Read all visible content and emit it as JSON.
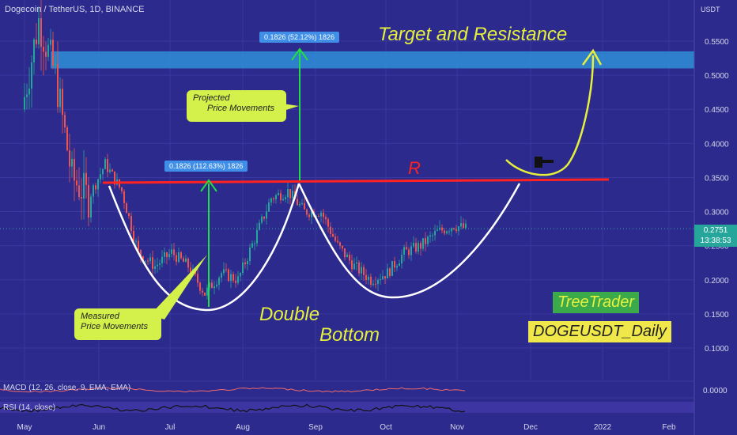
{
  "header": {
    "title": "Dogecoin / TetherUS, 1D, BINANCE"
  },
  "price_axis": {
    "unit": "USDT",
    "current_price": "0.2751",
    "countdown": "13:38:53"
  },
  "indicators": {
    "macd_label": "MACD (12, 26, close, 9, EMA, EMA)",
    "macd_value": "0.0000",
    "rsi_label": "RSI (14, close)"
  },
  "annotations": {
    "target": "Target and Resistance",
    "resistance_letter": "R",
    "pattern_line1": "Double",
    "pattern_line2": "Bottom",
    "projected_line1": "Projected",
    "projected_line2": "Price Movements",
    "measured_line1": "Measured",
    "measured_line2": "Price Movements",
    "measure_label_1": "0.1826 (112.63%) 1826",
    "measure_label_2": "0.1826 (52.12%) 1826",
    "author": "TreeTrader",
    "symbol_tag": "DOGEUSDT_Daily"
  },
  "colors": {
    "background": "#2c2a8c",
    "up": "#26a69a",
    "down": "#ef5350",
    "resistance": "#ff2222",
    "target_zone": "#2f8fd8",
    "arrow": "#22dd44",
    "yellow_text": "#e6f03c"
  },
  "chart_data": {
    "type": "line",
    "title": "Dogecoin / TetherUS, 1D, BINANCE",
    "ylabel": "USDT",
    "ylim": [
      0.06,
      0.59
    ],
    "y_ticks": [
      "0.5500",
      "0.5000",
      "0.4500",
      "0.4000",
      "0.3500",
      "0.3000",
      "0.2500",
      "0.2000",
      "0.1500",
      "0.1000"
    ],
    "x_ticks": [
      "May",
      "Jun",
      "Jul",
      "Aug",
      "Sep",
      "Oct",
      "Nov",
      "Dec",
      "2022",
      "Feb"
    ],
    "series": [
      {
        "x": [
          "2021-05-01",
          "2021-05-08",
          "2021-05-15",
          "2021-05-22",
          "2021-05-29",
          "2021-06-05",
          "2021-06-12",
          "2021-06-19",
          "2021-06-26",
          "2021-07-03",
          "2021-07-10",
          "2021-07-17",
          "2021-07-24",
          "2021-07-31",
          "2021-08-07",
          "2021-08-14",
          "2021-08-21",
          "2021-08-28",
          "2021-09-04",
          "2021-09-11",
          "2021-09-18",
          "2021-09-25",
          "2021-10-02",
          "2021-10-09",
          "2021-10-16",
          "2021-10-23",
          "2021-10-30",
          "2021-11-04"
        ],
        "values": [
          0.45,
          0.58,
          0.5,
          0.35,
          0.32,
          0.37,
          0.33,
          0.24,
          0.22,
          0.24,
          0.22,
          0.18,
          0.21,
          0.2,
          0.26,
          0.32,
          0.33,
          0.3,
          0.3,
          0.25,
          0.22,
          0.2,
          0.21,
          0.24,
          0.25,
          0.27,
          0.28,
          0.275
        ]
      }
    ],
    "target_zone": [
      0.51,
      0.535
    ],
    "resistance_level": 0.345,
    "grid": true
  }
}
